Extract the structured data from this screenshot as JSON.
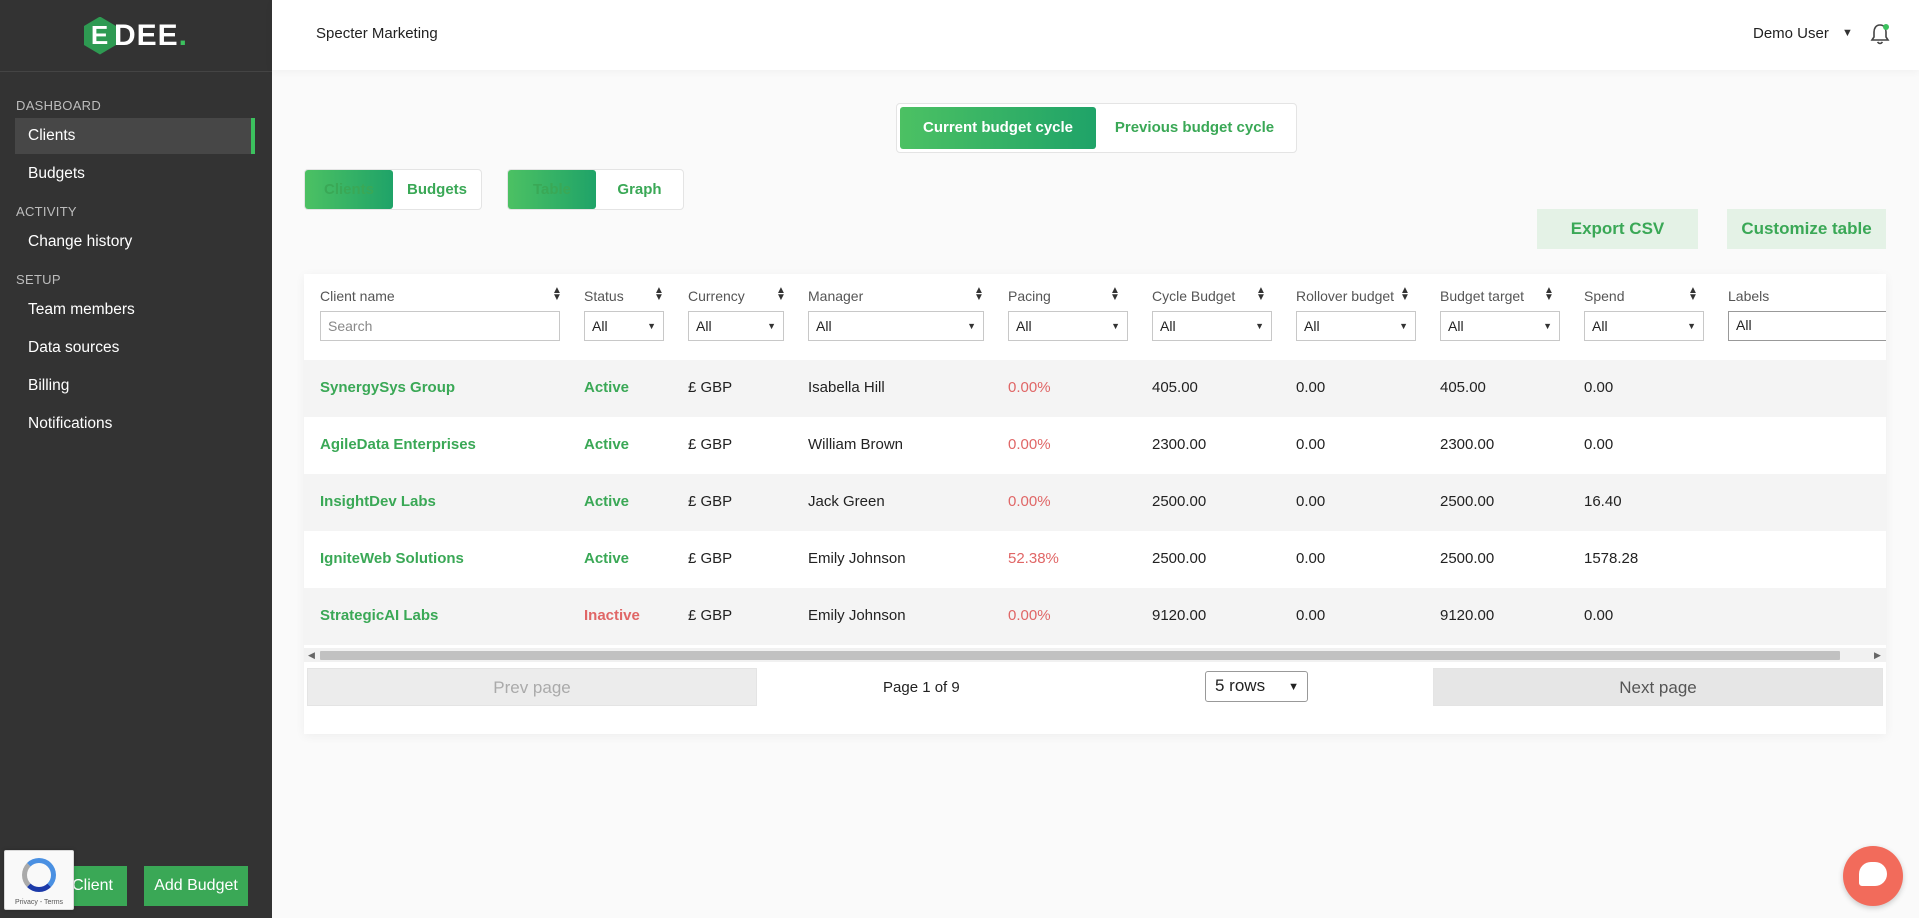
{
  "brand": {
    "logo_letter": "E",
    "logo_rest": "DEE",
    "logo_dot": "."
  },
  "sidebar": {
    "sections": [
      {
        "label": "DASHBOARD",
        "items": [
          "Clients",
          "Budgets"
        ]
      },
      {
        "label": "ACTIVITY",
        "items": [
          "Change history"
        ]
      },
      {
        "label": "SETUP",
        "items": [
          "Team members",
          "Data sources",
          "Billing",
          "Notifications"
        ]
      }
    ],
    "active_item": "Clients",
    "add_client_label": "Client",
    "add_budget_label": "Add Budget"
  },
  "recaptcha": {
    "text": "Privacy - Terms"
  },
  "header": {
    "company": "Specter Marketing",
    "user": "Demo User"
  },
  "cycle_toggle": {
    "current": "Current budget cycle",
    "previous": "Previous budget cycle",
    "selected": "current"
  },
  "view_toggle": {
    "clients": "Clients",
    "budgets": "Budgets",
    "selected": "clients"
  },
  "mode_toggle": {
    "table": "Table",
    "graph": "Graph",
    "selected": "table"
  },
  "actions": {
    "export": "Export CSV",
    "customize": "Customize table"
  },
  "table": {
    "columns": [
      "Client name",
      "Status",
      "Currency",
      "Manager",
      "Pacing",
      "Cycle Budget",
      "Rollover budget",
      "Budget target",
      "Spend",
      "Labels"
    ],
    "filters": {
      "search_placeholder": "Search",
      "status": "All",
      "currency": "All",
      "manager": "All",
      "pacing": "All",
      "cycle_budget": "All",
      "rollover": "All",
      "target": "All",
      "spend": "All",
      "labels": "All"
    },
    "rows": [
      {
        "name": "SynergySys Group",
        "status": "Active",
        "currency": "£ GBP",
        "manager": "Isabella Hill",
        "pacing": "0.00%",
        "cycle_budget": "405.00",
        "rollover": "0.00",
        "target": "405.00",
        "spend": "0.00"
      },
      {
        "name": "AgileData Enterprises",
        "status": "Active",
        "currency": "£ GBP",
        "manager": "William Brown",
        "pacing": "0.00%",
        "cycle_budget": "2300.00",
        "rollover": "0.00",
        "target": "2300.00",
        "spend": "0.00"
      },
      {
        "name": "InsightDev Labs",
        "status": "Active",
        "currency": "£ GBP",
        "manager": "Jack Green",
        "pacing": "0.00%",
        "cycle_budget": "2500.00",
        "rollover": "0.00",
        "target": "2500.00",
        "spend": "16.40"
      },
      {
        "name": "IgniteWeb Solutions",
        "status": "Active",
        "currency": "£ GBP",
        "manager": "Emily Johnson",
        "pacing": "52.38%",
        "cycle_budget": "2500.00",
        "rollover": "0.00",
        "target": "2500.00",
        "spend": "1578.28"
      },
      {
        "name": "StrategicAI Labs",
        "status": "Inactive",
        "currency": "£ GBP",
        "manager": "Emily Johnson",
        "pacing": "0.00%",
        "cycle_budget": "9120.00",
        "rollover": "0.00",
        "target": "9120.00",
        "spend": "0.00"
      }
    ]
  },
  "pager": {
    "prev": "Prev page",
    "next": "Next page",
    "info": "Page 1 of 9",
    "rows_option": "5 rows"
  },
  "colors": {
    "accent": "#3aa856",
    "sidebar": "#333333",
    "danger": "#e06666",
    "chat": "#f26b5b"
  }
}
